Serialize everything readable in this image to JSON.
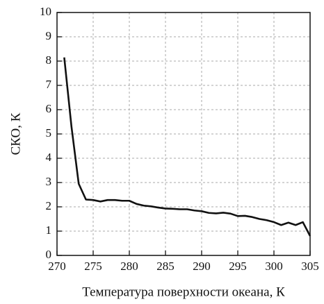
{
  "chart_data": {
    "type": "line",
    "xlabel": "Температура поверхности океана, К",
    "ylabel": "СКО, К",
    "x": [
      271,
      272,
      273,
      274,
      275,
      276,
      277,
      278,
      279,
      280,
      281,
      282,
      283,
      284,
      285,
      286,
      287,
      288,
      289,
      290,
      291,
      292,
      293,
      294,
      295,
      296,
      297,
      298,
      299,
      300,
      301,
      302,
      303,
      304,
      305
    ],
    "series": [
      {
        "color": "#111111",
        "values": [
          8.15,
          5.3,
          2.95,
          2.3,
          2.28,
          2.22,
          2.28,
          2.28,
          2.25,
          2.25,
          2.12,
          2.05,
          2.02,
          1.97,
          1.93,
          1.92,
          1.9,
          1.9,
          1.85,
          1.82,
          1.75,
          1.73,
          1.76,
          1.72,
          1.62,
          1.63,
          1.58,
          1.5,
          1.45,
          1.37,
          1.25,
          1.35,
          1.25,
          1.37,
          0.8
        ]
      }
    ],
    "xlim": [
      270,
      305
    ],
    "xticks": [
      270,
      275,
      280,
      285,
      290,
      295,
      300,
      305
    ],
    "ylim": [
      0,
      10
    ],
    "yticks": [
      0,
      1,
      2,
      3,
      4,
      5,
      6,
      7,
      8,
      9,
      10
    ],
    "grid": true
  }
}
